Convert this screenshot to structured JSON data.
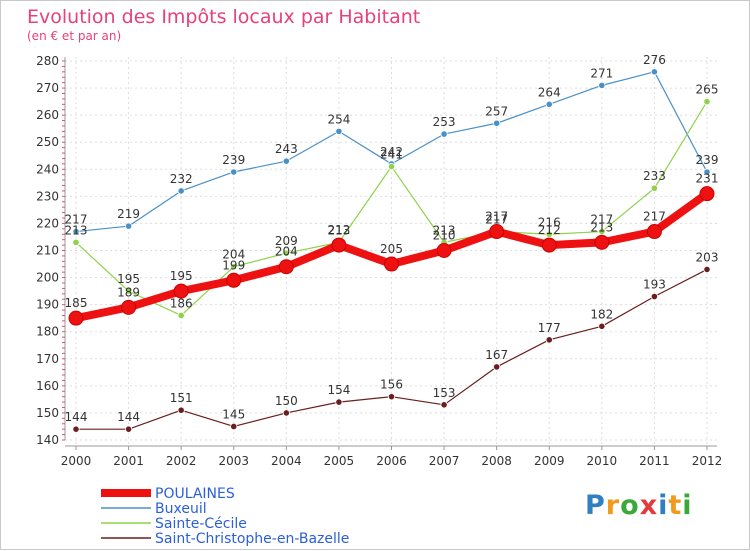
{
  "chart_data": {
    "type": "line",
    "title": "Evolution des Impôts locaux par Habitant",
    "subtitle": "(en € et par an)",
    "categories": [
      "2000",
      "2001",
      "2002",
      "2003",
      "2004",
      "2005",
      "2006",
      "2007",
      "2008",
      "2009",
      "2010",
      "2011",
      "2012"
    ],
    "ylim": [
      140,
      280
    ],
    "yticks": [
      140,
      150,
      160,
      170,
      180,
      190,
      200,
      210,
      220,
      230,
      240,
      250,
      260,
      270,
      280
    ],
    "grid": true,
    "legend_position": "bottom-left",
    "series": [
      {
        "name": "Buxeuil",
        "color": "#4a90c8",
        "values": [
          217,
          219,
          232,
          239,
          243,
          254,
          242,
          253,
          257,
          264,
          271,
          276,
          239
        ]
      },
      {
        "name": "Sainte-Cécile",
        "color": "#8fd24a",
        "values": [
          213,
          195,
          186,
          204,
          209,
          213,
          241,
          213,
          217,
          216,
          217,
          233,
          265
        ]
      },
      {
        "name": "Saint-Christophe-en-Bazelle",
        "color": "#6b1e1e",
        "values": [
          144,
          144,
          151,
          145,
          150,
          154,
          156,
          153,
          167,
          177,
          182,
          193,
          203
        ]
      },
      {
        "name": "POULAINES",
        "color": "#ee1111",
        "values": [
          185,
          189,
          195,
          199,
          204,
          212,
          205,
          210,
          217,
          212,
          213,
          217,
          231
        ]
      }
    ],
    "legend": [
      {
        "name": "POULAINES",
        "color": "#ee1111"
      },
      {
        "name": "Buxeuil",
        "color": "#4a90c8"
      },
      {
        "name": "Sainte-Cécile",
        "color": "#8fd24a"
      },
      {
        "name": "Saint-Christophe-en-Bazelle",
        "color": "#6b1e1e"
      }
    ]
  },
  "logo": {
    "letters": [
      "P",
      "r",
      "o",
      "x",
      "i",
      "t",
      "i"
    ],
    "colors": [
      "#2f7fc1",
      "#f29a1b",
      "#3aa83a",
      "#e23b3b",
      "#2f7fc1",
      "#f29a1b",
      "#3aa83a"
    ]
  }
}
